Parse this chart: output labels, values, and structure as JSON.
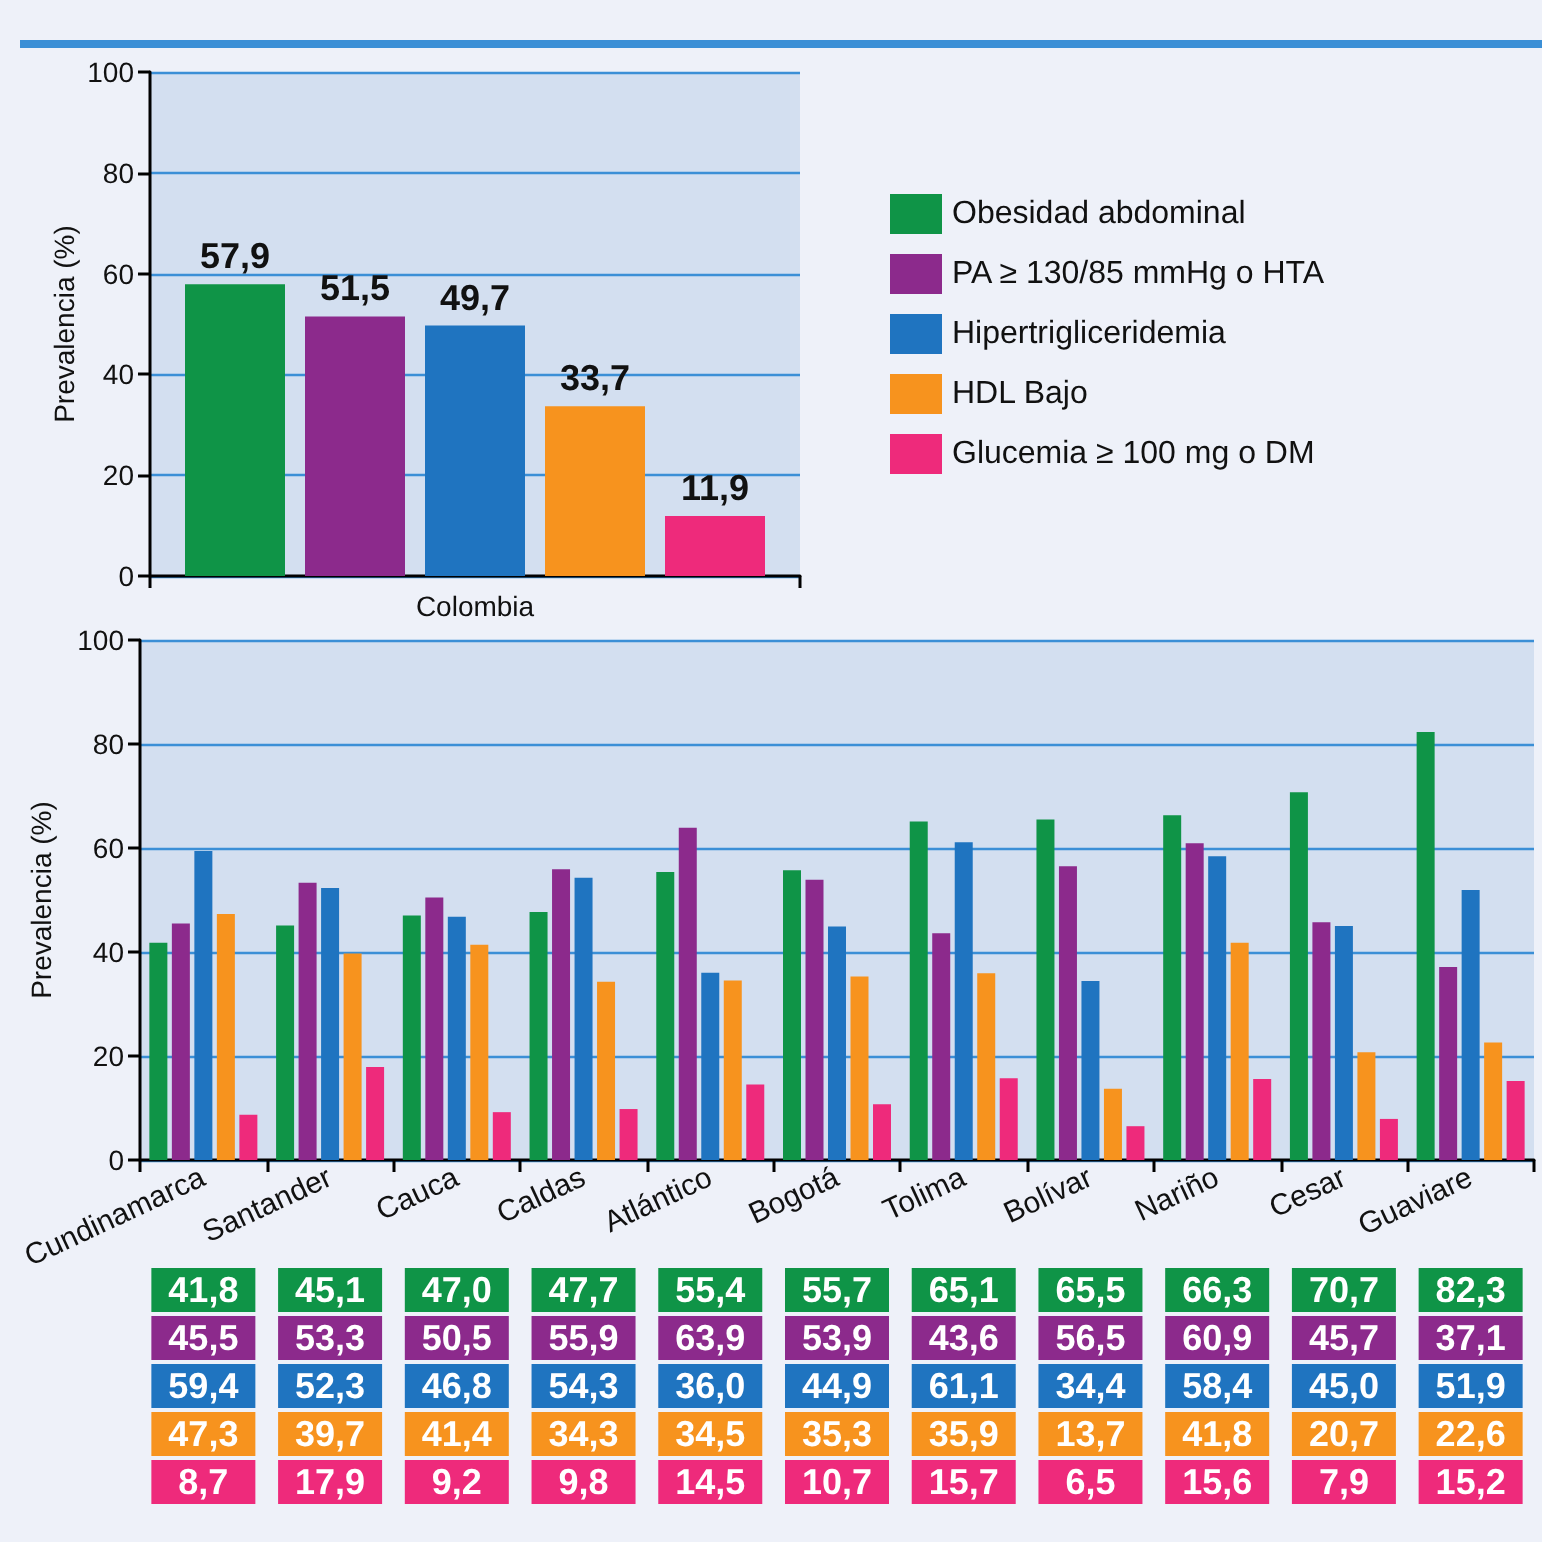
{
  "chart_data": [
    {
      "type": "bar",
      "ylabel": "Prevalencia (%)",
      "categories": [
        "Colombia"
      ],
      "ylim": [
        0,
        100
      ],
      "yticks": [
        0,
        20,
        40,
        60,
        80,
        100
      ],
      "grid": "y",
      "legend": "right",
      "series": [
        {
          "name": "Obesidad abdominal",
          "color": "#0f9447",
          "values": [
            57.9
          ],
          "value_labels": [
            "57,9"
          ]
        },
        {
          "name": "PA ≥ 130/85 mmHg o HTA",
          "color": "#8c2a8c",
          "values": [
            51.5
          ],
          "value_labels": [
            "51,5"
          ]
        },
        {
          "name": "Hipertrigliceridemia",
          "color": "#1f74c0",
          "values": [
            49.7
          ],
          "value_labels": [
            "49,7"
          ]
        },
        {
          "name": "HDL Bajo",
          "color": "#f7931e",
          "values": [
            33.7
          ],
          "value_labels": [
            "33,7"
          ]
        },
        {
          "name": "Glucemia ≥ 100 mg o DM",
          "color": "#ee2a7b",
          "values": [
            11.9
          ],
          "value_labels": [
            "11,9"
          ]
        }
      ]
    },
    {
      "type": "bar",
      "ylabel": "Prevalencia (%)",
      "categories": [
        "Cundinamarca",
        "Santander",
        "Cauca",
        "Caldas",
        "Atlántico",
        "Bogotá",
        "Tolima",
        "Bolívar",
        "Nariño",
        "Cesar",
        "Guaviare"
      ],
      "ylim": [
        0,
        100
      ],
      "yticks": [
        0,
        20,
        40,
        60,
        80,
        100
      ],
      "grid": "y",
      "series": [
        {
          "color": "#0f9447",
          "values": [
            41.8,
            45.1,
            47.0,
            47.7,
            55.4,
            55.7,
            65.1,
            65.5,
            66.3,
            70.7,
            82.3
          ],
          "value_labels": [
            "41,8",
            "45,1",
            "47,0",
            "47,7",
            "55,4",
            "55,7",
            "65,1",
            "65,5",
            "66,3",
            "70,7",
            "82,3"
          ]
        },
        {
          "color": "#8c2a8c",
          "values": [
            45.5,
            53.3,
            50.5,
            55.9,
            63.9,
            53.9,
            43.6,
            56.5,
            60.9,
            45.7,
            37.1
          ],
          "value_labels": [
            "45,5",
            "53,3",
            "50,5",
            "55,9",
            "63,9",
            "53,9",
            "43,6",
            "56,5",
            "60,9",
            "45,7",
            "37,1"
          ]
        },
        {
          "color": "#1f74c0",
          "values": [
            59.4,
            52.3,
            46.8,
            54.3,
            36.0,
            44.9,
            61.1,
            34.4,
            58.4,
            45.0,
            51.9
          ],
          "value_labels": [
            "59,4",
            "52,3",
            "46,8",
            "54,3",
            "36,0",
            "44,9",
            "61,1",
            "34,4",
            "58,4",
            "45,0",
            "51,9"
          ]
        },
        {
          "color": "#f7931e",
          "values": [
            47.3,
            39.7,
            41.4,
            34.3,
            34.5,
            35.3,
            35.9,
            13.7,
            41.8,
            20.7,
            22.6
          ],
          "value_labels": [
            "47,3",
            "39,7",
            "41,4",
            "34,3",
            "34,5",
            "35,3",
            "35,9",
            "13,7",
            "41,8",
            "20,7",
            "22,6"
          ]
        },
        {
          "color": "#ee2a7b",
          "values": [
            8.7,
            17.9,
            9.2,
            9.8,
            14.5,
            10.7,
            15.7,
            6.5,
            15.6,
            7.9,
            15.2
          ],
          "value_labels": [
            "8,7",
            "17,9",
            "9,2",
            "9,8",
            "14,5",
            "10,7",
            "15,7",
            "6,5",
            "15,6",
            "7,9",
            "15,2"
          ]
        }
      ]
    }
  ]
}
